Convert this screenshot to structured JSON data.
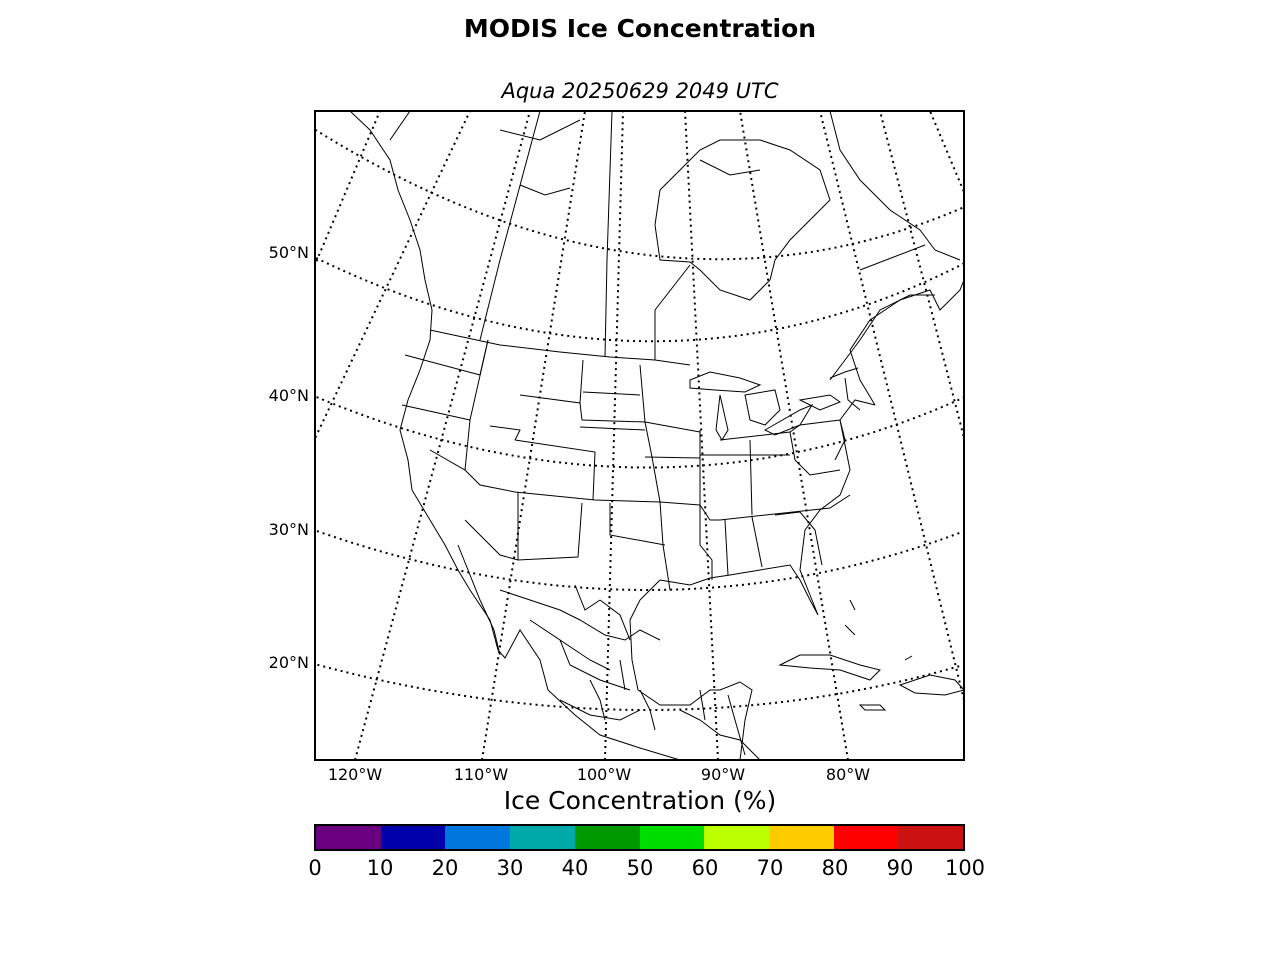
{
  "title": "MODIS Ice Concentration",
  "subtitle": "Aqua 20250629 2049 UTC",
  "map": {
    "lat_labels": [
      "50°N",
      "40°N",
      "30°N",
      "20°N"
    ],
    "lon_labels": [
      "120°W",
      "110°W",
      "100°W",
      "90°W",
      "80°W"
    ]
  },
  "colorbar": {
    "label": "Ice Concentration (%)",
    "ticks": [
      "0",
      "10",
      "20",
      "30",
      "40",
      "50",
      "60",
      "70",
      "80",
      "90",
      "100"
    ],
    "colors": [
      "#6a007f",
      "#0000aa",
      "#0077dd",
      "#00aaaa",
      "#009900",
      "#00dd00",
      "#bbff00",
      "#ffcc00",
      "#ff0000",
      "#cc1111"
    ]
  }
}
